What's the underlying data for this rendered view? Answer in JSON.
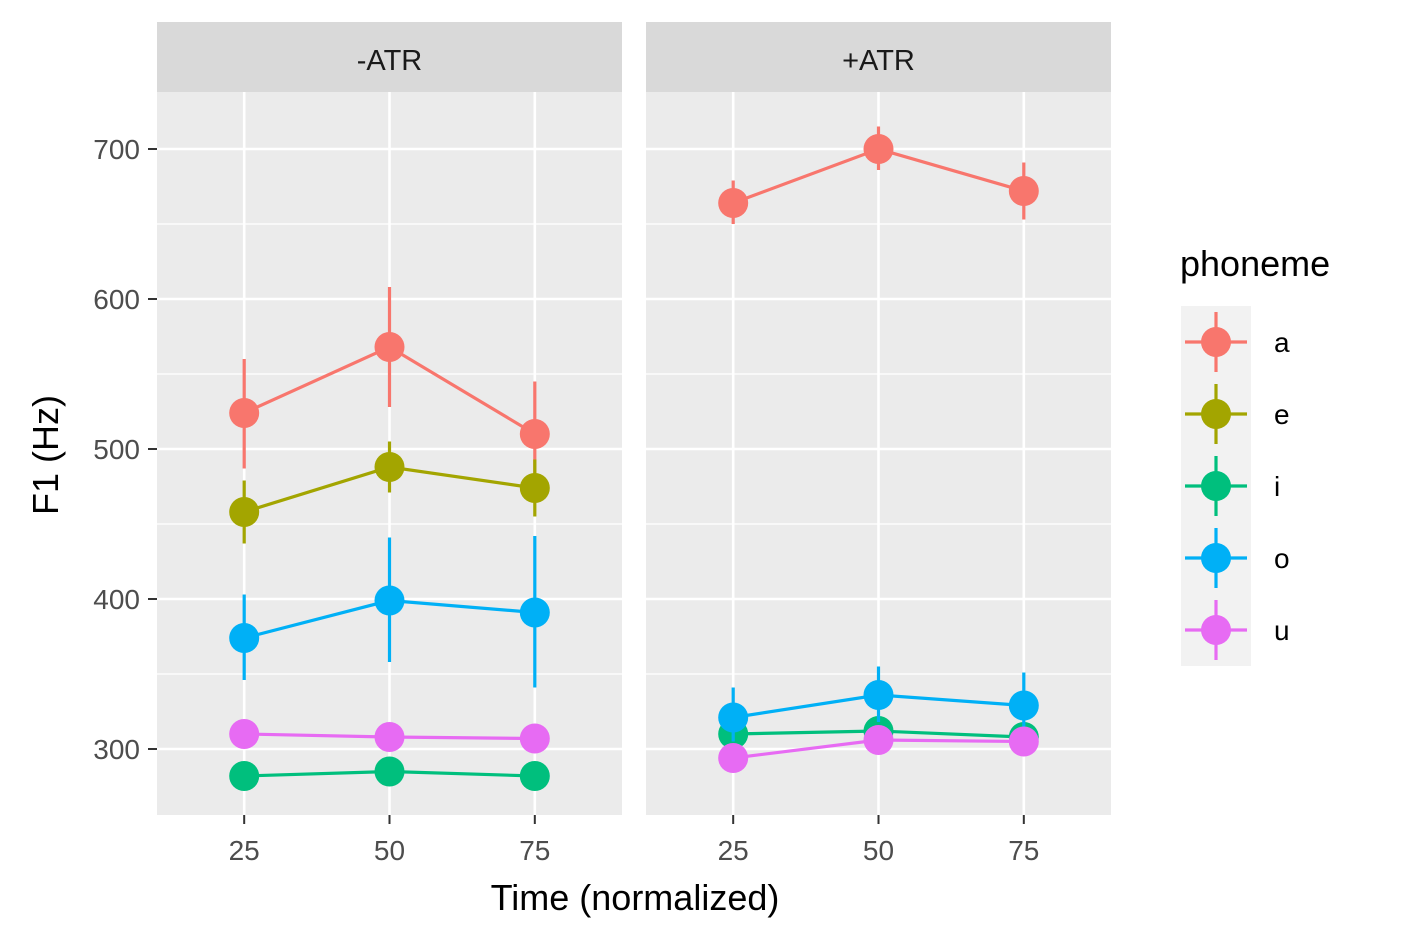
{
  "chart_data": {
    "type": "line",
    "xlabel": "Time (normalized)",
    "ylabel": "F1 (Hz)",
    "x": [
      25,
      50,
      75
    ],
    "xlim": [
      10,
      90
    ],
    "ylim": [
      256,
      738
    ],
    "x_ticks": [
      "25",
      "50",
      "75"
    ],
    "y_ticks": [
      "300",
      "400",
      "500",
      "600",
      "700"
    ],
    "y_tick_values": [
      300,
      400,
      500,
      600,
      700
    ],
    "grid": true,
    "facet_column": "ATR",
    "facets": [
      {
        "label": "-ATR",
        "series": [
          {
            "name": "a",
            "values": [
              524,
              568,
              510
            ],
            "error_low": [
              487,
              528,
              475
            ],
            "error_high": [
              560,
              608,
              545
            ]
          },
          {
            "name": "e",
            "values": [
              458,
              488,
              474
            ],
            "error_low": [
              437,
              471,
              455
            ],
            "error_high": [
              479,
              505,
              493
            ]
          },
          {
            "name": "i",
            "values": [
              282,
              285,
              282
            ],
            "error_low": [
              276,
              279,
              276
            ],
            "error_high": [
              288,
              291,
              288
            ]
          },
          {
            "name": "o",
            "values": [
              374,
              399,
              391
            ],
            "error_low": [
              346,
              358,
              341
            ],
            "error_high": [
              403,
              441,
              442
            ]
          },
          {
            "name": "u",
            "values": [
              310,
              308,
              307
            ],
            "error_low": [
              305,
              303,
              302
            ],
            "error_high": [
              315,
              313,
              312
            ]
          }
        ]
      },
      {
        "label": "+ATR",
        "series": [
          {
            "name": "a",
            "values": [
              664,
              700,
              672
            ],
            "error_low": [
              650,
              686,
              653
            ],
            "error_high": [
              679,
              715,
              691
            ]
          },
          {
            "name": "e",
            "values": [
              null,
              null,
              null
            ],
            "error_low": [
              null,
              null,
              null
            ],
            "error_high": [
              null,
              null,
              null
            ]
          },
          {
            "name": "i",
            "values": [
              310,
              312,
              308
            ],
            "error_low": [
              304,
              306,
              302
            ],
            "error_high": [
              316,
              318,
              314
            ]
          },
          {
            "name": "o",
            "values": [
              321,
              336,
              329
            ],
            "error_low": [
              305,
              318,
              308
            ],
            "error_high": [
              341,
              355,
              351
            ]
          },
          {
            "name": "u",
            "values": [
              294,
              306,
              305
            ],
            "error_low": [
              288,
              300,
              299
            ],
            "error_high": [
              300,
              312,
              311
            ]
          }
        ]
      }
    ],
    "legend": {
      "title": "phoneme",
      "position": "right",
      "entries": [
        "a",
        "e",
        "i",
        "o",
        "u"
      ]
    },
    "colors": {
      "a": "#F8766D",
      "e": "#A3A500",
      "i": "#00BF7D",
      "o": "#00B0F6",
      "u": "#E76BF3"
    }
  }
}
